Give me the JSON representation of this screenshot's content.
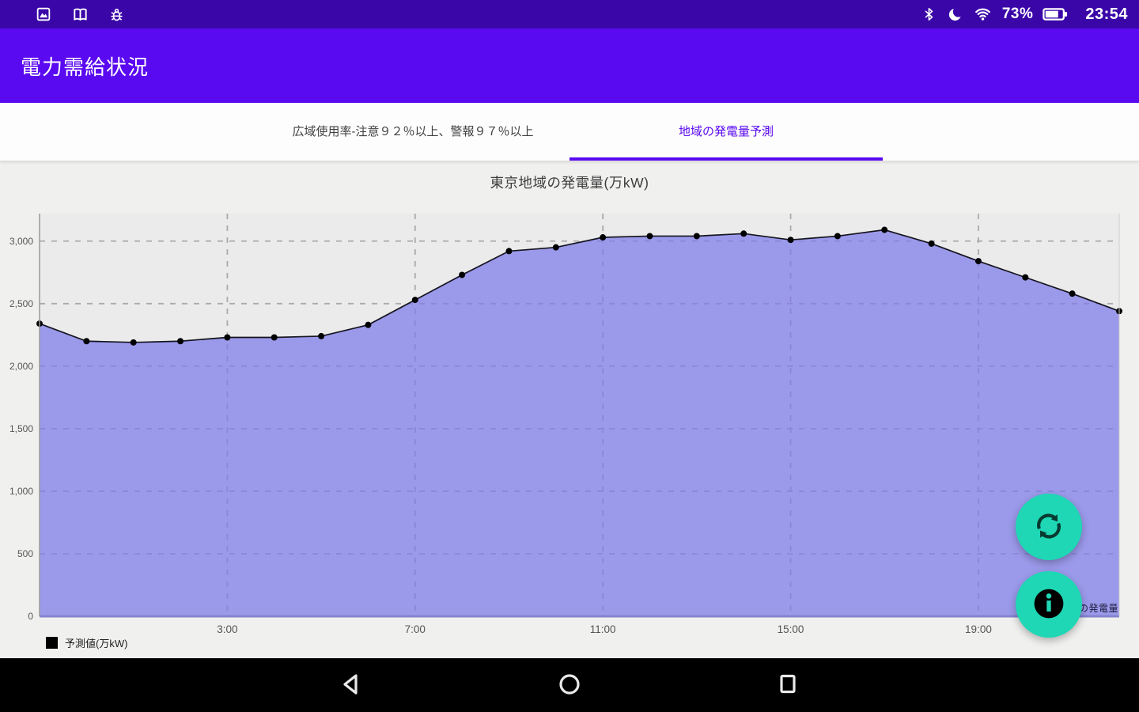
{
  "status_bar": {
    "time": "23:54",
    "battery_percent": "73%",
    "left_icons": [
      "image-icon",
      "book-icon",
      "bug-icon"
    ],
    "right_icons": [
      "bluetooth-icon",
      "night-mode-icon",
      "wifi-icon",
      "battery-icon"
    ]
  },
  "app_bar": {
    "title": "電力需給状況"
  },
  "tabs": [
    {
      "label": "広域使用率-注意９２％以上、警報９７％以上",
      "active": false
    },
    {
      "label": "地域の発電量予測",
      "active": true
    }
  ],
  "chart_data": {
    "type": "area",
    "title": "東京地域の発電量(万kW)",
    "x": [
      "23:00",
      "0:00",
      "1:00",
      "2:00",
      "3:00",
      "4:00",
      "5:00",
      "6:00",
      "7:00",
      "8:00",
      "9:00",
      "10:00",
      "11:00",
      "12:00",
      "13:00",
      "14:00",
      "15:00",
      "16:00",
      "17:00",
      "18:00",
      "19:00",
      "20:00",
      "21:00",
      "22:00"
    ],
    "values": [
      2340,
      2200,
      2190,
      2200,
      2230,
      2230,
      2240,
      2330,
      2530,
      2730,
      2920,
      2950,
      3030,
      3040,
      3040,
      3060,
      3010,
      3040,
      3090,
      2980,
      2840,
      2710,
      2580,
      2440
    ],
    "x_tick_labels": [
      "3:00",
      "7:00",
      "11:00",
      "15:00",
      "19:00"
    ],
    "y_ticks": [
      0,
      500,
      1000,
      1500,
      2000,
      2500,
      3000
    ],
    "ylim": [
      0,
      3220
    ],
    "grid": true,
    "legend": {
      "label": "予測値(万kW)",
      "swatch_color": "#000000",
      "position": "bottom-left"
    },
    "watermark": "の発電量"
  },
  "fabs": [
    {
      "icon": "refresh-icon"
    },
    {
      "icon": "info-icon"
    }
  ],
  "nav_bar": {
    "icons": [
      "back-icon",
      "home-icon",
      "recents-icon"
    ]
  },
  "colors": {
    "status_bar_bg": "#3a06a8",
    "app_bar_bg": "#5a0af0",
    "accent": "#5a0af0",
    "tab_inactive_text": "#3f3f3f",
    "content_bg": "#f0f0ef",
    "plot_bg": "#ebebeb",
    "area_fill": "#9b99ea",
    "line_color": "#15151f",
    "point_color": "#000000",
    "grid_color": "#ababab",
    "grid_color_inside_area": "#8a87d8",
    "axis_color": "#9a9a9a",
    "axis_bottom_color": "#8583cf",
    "fab_bg": "#1fd7b5",
    "fab_icon_color": "#073a31",
    "nav_bar_bg": "#000000"
  }
}
